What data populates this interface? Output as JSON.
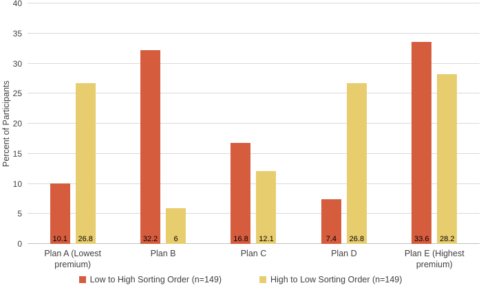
{
  "chart_data": {
    "type": "bar",
    "title": "",
    "xlabel": "",
    "ylabel": "Percent of Participants",
    "ylim": [
      0,
      40
    ],
    "yticks": [
      0,
      5,
      10,
      15,
      20,
      25,
      30,
      35,
      40
    ],
    "grid": true,
    "legend_position": "bottom",
    "categories": [
      "Plan A (Lowest premium)",
      "Plan B",
      "Plan C",
      "Plan D",
      "Plan E (Highest premium)"
    ],
    "series": [
      {
        "name": "Low to High Sorting Order (n=149)",
        "color": "#d65c3e",
        "values": [
          10.1,
          32.2,
          16.8,
          7.4,
          33.6
        ],
        "labels": [
          "10.1",
          "32.2",
          "16.8",
          "7.4",
          "33.6"
        ]
      },
      {
        "name": "High to Low Sorting Order (n=149)",
        "color": "#e8cd6f",
        "values": [
          26.8,
          6,
          12.1,
          26.8,
          28.2
        ],
        "labels": [
          "26.8",
          "6",
          "12.1",
          "26.8",
          "28.2"
        ]
      }
    ]
  },
  "colors": {
    "background": "#ffffff",
    "gridline": "#d9d9d9",
    "axis_line": "#bfbfbf",
    "axis_text": "#3f3f3f",
    "value_label_text": "#000000"
  }
}
